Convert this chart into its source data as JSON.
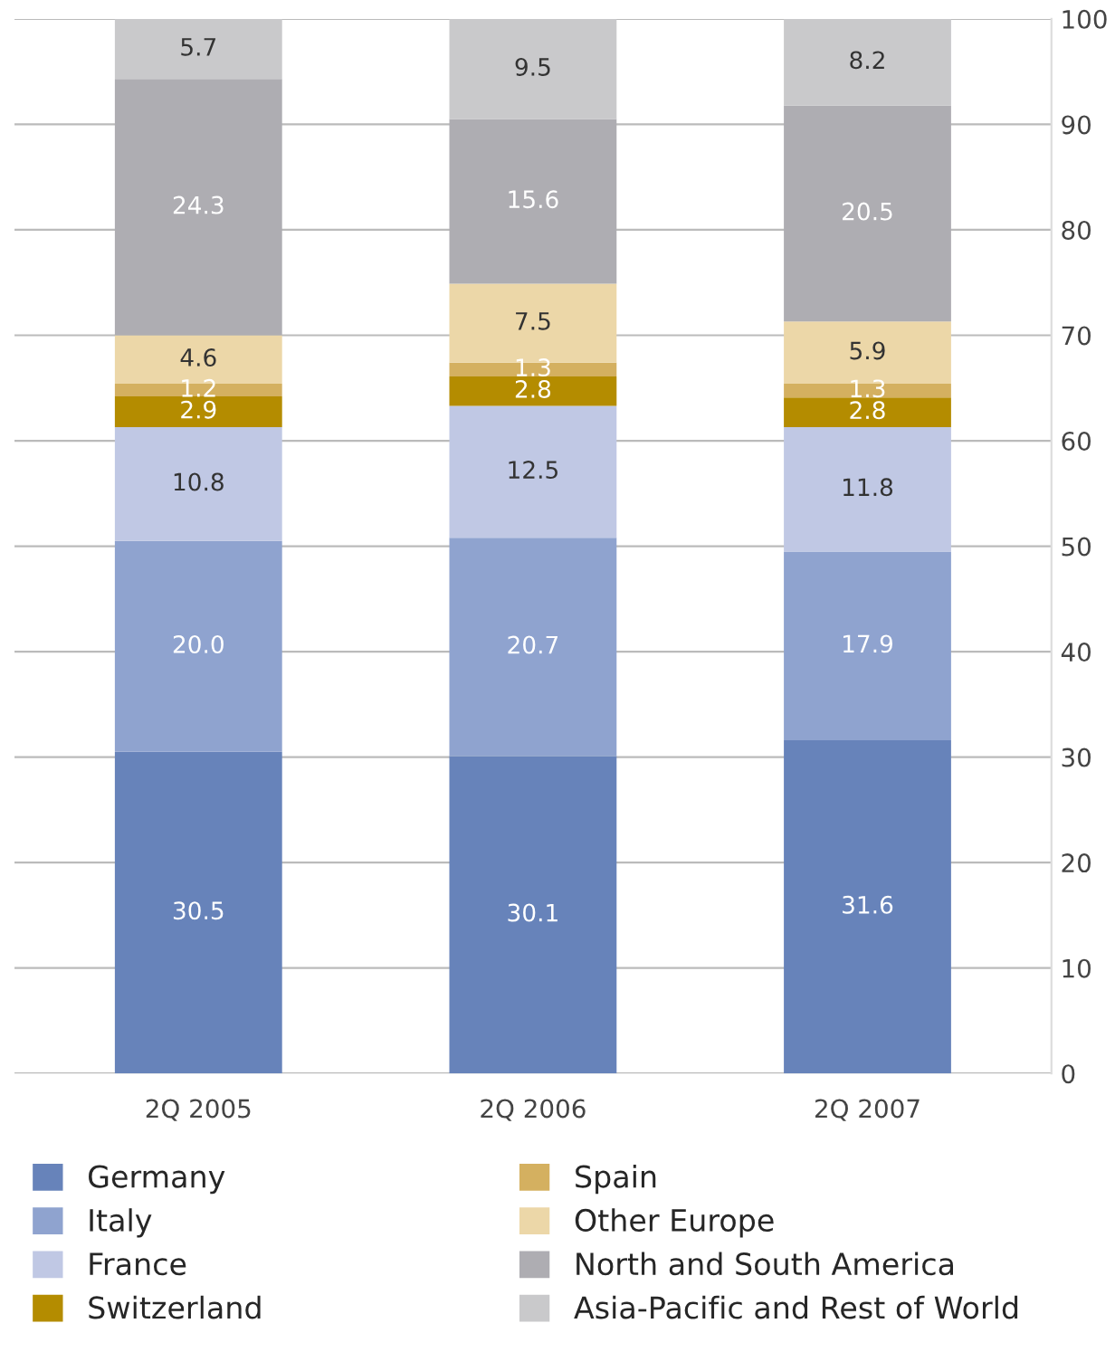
{
  "chart_data": {
    "type": "bar",
    "stacked": true,
    "categories": [
      "2Q 2005",
      "2Q 2006",
      "2Q 2007"
    ],
    "series": [
      {
        "name": "Germany",
        "color": "#6783ba",
        "values": [
          30.5,
          30.1,
          31.6
        ],
        "value_labels": [
          "30.5",
          "30.1",
          "31.6"
        ]
      },
      {
        "name": "Italy",
        "color": "#8fa3cf",
        "values": [
          20.0,
          20.7,
          17.9
        ],
        "value_labels": [
          "20.0",
          "20.7",
          "17.9"
        ]
      },
      {
        "name": "France",
        "color": "#c0c8e4",
        "values": [
          10.8,
          12.5,
          11.8
        ],
        "value_labels": [
          "10.8",
          "12.5",
          "11.8"
        ]
      },
      {
        "name": "Switzerland",
        "color": "#b48c00",
        "values": [
          2.9,
          2.8,
          2.8
        ],
        "value_labels": [
          "2.9",
          "2.8",
          "2.8"
        ]
      },
      {
        "name": "Spain",
        "color": "#d4b060",
        "values": [
          1.2,
          1.3,
          1.3
        ],
        "value_labels": [
          "1.2",
          "1.3",
          "1.3"
        ]
      },
      {
        "name": "Other Europe",
        "color": "#ecd7a8",
        "values": [
          4.6,
          7.5,
          5.9
        ],
        "value_labels": [
          "4.6",
          "7.5",
          "5.9"
        ]
      },
      {
        "name": "North and South America",
        "color": "#aeadb2",
        "values": [
          24.3,
          15.6,
          20.5
        ],
        "value_labels": [
          "24.3",
          "15.6",
          "20.5"
        ]
      },
      {
        "name": "Asia-Pacific and Rest of World",
        "color": "#c9c9cb",
        "values": [
          5.7,
          9.5,
          8.2
        ],
        "value_labels": [
          "5.7",
          "9.5",
          "8.2"
        ]
      }
    ],
    "ylim": [
      0,
      100
    ],
    "yticks": [
      0,
      10,
      20,
      30,
      40,
      50,
      60,
      70,
      80,
      90,
      100
    ],
    "grid": "y",
    "legend": "bottom"
  }
}
